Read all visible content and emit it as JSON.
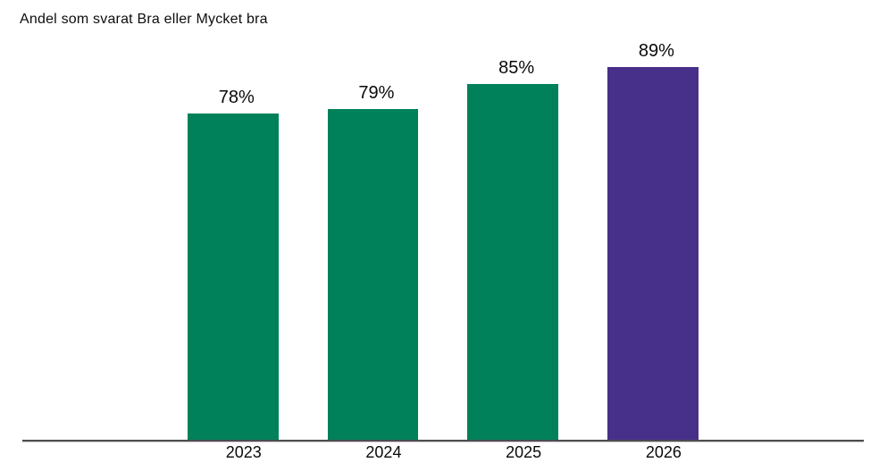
{
  "chart_data": {
    "type": "bar",
    "title": "Andel som svarat Bra eller Mycket bra",
    "categories": [
      "2023",
      "2024",
      "2025",
      "2026"
    ],
    "values": [
      78,
      79,
      85,
      89
    ],
    "value_labels": [
      "78%",
      "79%",
      "85%",
      "89%"
    ],
    "series_colors": [
      "#008159",
      "#008159",
      "#008159",
      "#473089"
    ],
    "xlabel": "",
    "ylabel": "",
    "ylim": [
      0,
      100
    ],
    "grid": false,
    "legend": false,
    "colors": {
      "green_bar": "#008159",
      "purple_bar": "#473089",
      "axis_line": "#4d4d50",
      "text": "#0a0a0a",
      "background": "#ffffff"
    }
  }
}
